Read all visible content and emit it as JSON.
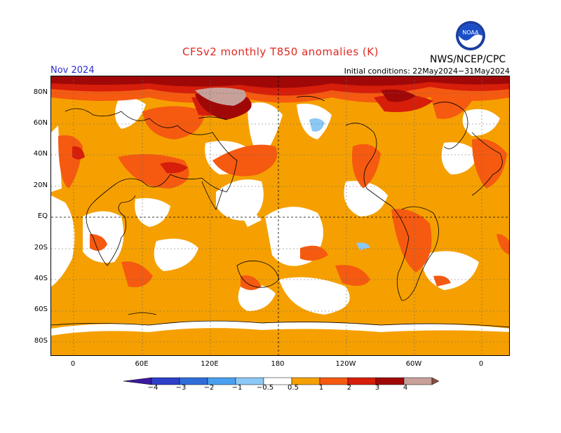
{
  "title": "CFSv2 monthly T850 anomalies (K)",
  "org": "NWS/NCEP/CPC",
  "logo_text": "NOAA",
  "month": "Nov 2024",
  "initial_conditions": "Initial conditions: 22May2024−31May2024",
  "lat_labels": [
    "80N",
    "60N",
    "40N",
    "20N",
    "EQ",
    "20S",
    "40S",
    "60S",
    "80S"
  ],
  "lon_labels": [
    "0",
    "60E",
    "120E",
    "180",
    "120W",
    "60W",
    "0"
  ],
  "colorbar": {
    "labels": [
      "−4",
      "−3",
      "−2",
      "−1",
      "−0.5",
      "0.5",
      "1",
      "2",
      "3",
      "4"
    ],
    "colors": [
      "#3a1aa0",
      "#2e3fc8",
      "#2f6ed8",
      "#4aa0ef",
      "#8cc8f5",
      "#ffffff",
      "#f5a000",
      "#f55a10",
      "#d61e0a",
      "#a00808",
      "#c8a09a",
      "#8a5040"
    ]
  },
  "map_colors": {
    "c05": "#f5a000",
    "c1": "#f55a10",
    "c2": "#d61e0a",
    "c3": "#a00808",
    "c4": "#c8a09a",
    "n05": "#8cc8f5"
  }
}
